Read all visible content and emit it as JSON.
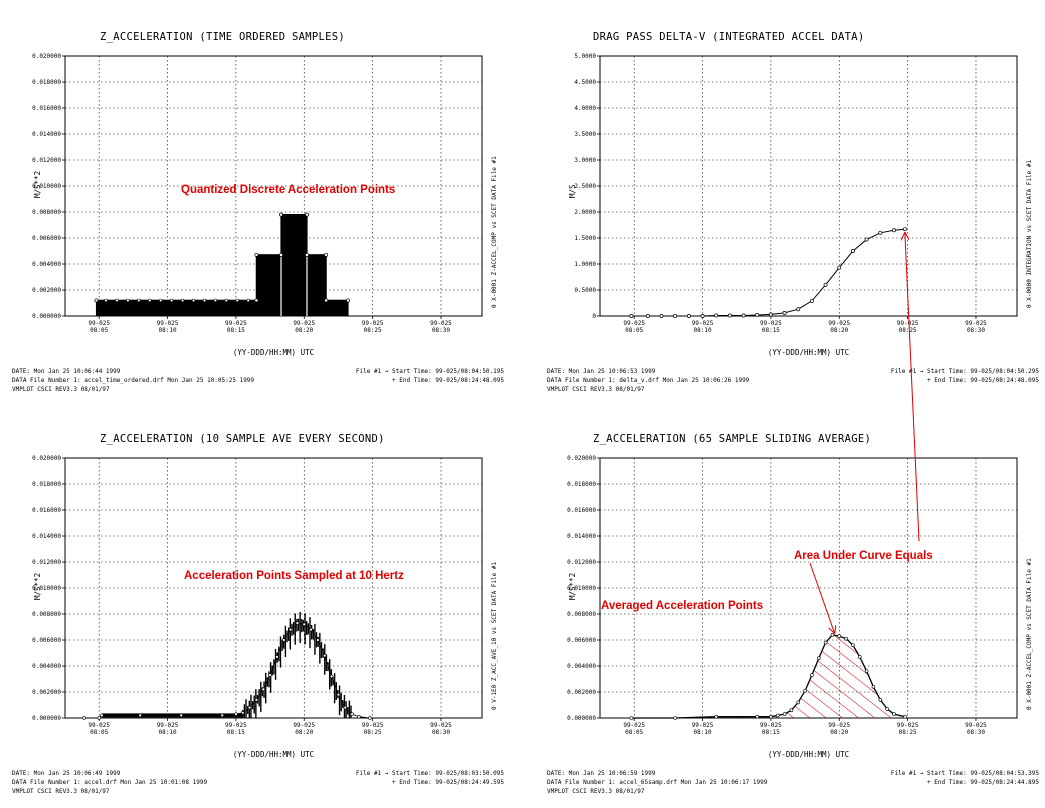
{
  "colors": {
    "annotation": "#e00000",
    "hatch": "#cc0000",
    "grid": "#000000"
  },
  "charts": [
    {
      "title": "Z_ACCELERATION (TIME ORDERED SAMPLES)",
      "ylabel": "M/S**2",
      "xlabel": "(YY-DDD/HH:MM) UTC",
      "right_label": "0 X-0001 Z-ACCEL_COMP vs SCET DATA File #1",
      "footer": {
        "date": "DATE: Mon Jan 25 10:06:44 1999",
        "file": "DATA File Number 1: accel_time_ordered.drf   Mon Jan 25 10:05:25 1999",
        "version": "VMPLOT CSCI REV3.3 08/01/97",
        "start": "File #1 → Start Time: 99-025/08:04:50.195",
        "end": "+ End Time: 99-025/08:24:48.095"
      },
      "annotations": [
        "Quantized Discrete Acceleration Points"
      ]
    },
    {
      "title": "DRAG PASS DELTA-V (INTEGRATED ACCEL DATA)",
      "ylabel": "M/S",
      "xlabel": "(YY-DDD/HH:MM) UTC",
      "right_label": "0 X-0000 INTEGRATION vs SCET DATA File #1",
      "footer": {
        "date": "DATE: Mon Jan 25 10:06:53 1999",
        "file": "DATA File Number 1: delta_v.drf   Mon Jan 25 10:06:26 1999",
        "version": "VMPLOT CSCI REV3.3 08/01/97",
        "start": "File #1 → Start Time: 99-025/08:04:50.295",
        "end": "+ End Time: 99-025/08:24:48.095"
      },
      "annotations": []
    },
    {
      "title": "Z_ACCELERATION (10 SAMPLE AVE EVERY SECOND)",
      "ylabel": "M/S**2",
      "xlabel": "(YY-DDD/HH:MM) UTC",
      "right_label": "0 V-1E0 Z_ACC_AVE_10 vs SCET DATA File #1",
      "footer": {
        "date": "DATE: Mon Jan 25 10:06:49 1999",
        "file": "DATA File Number 1: accel.drf   Mon Jan 25 10:01:08 1999",
        "version": "VMPLOT CSCI REV3.3 08/01/97",
        "start": "File #1 → Start Time: 99-025/08:03:50.095",
        "end": "+ End Time: 99-025/08:24:49.595"
      },
      "annotations": [
        "Acceleration Points Sampled at 10 Hertz"
      ]
    },
    {
      "title": "Z_ACCELERATION (65 SAMPLE SLIDING AVERAGE)",
      "ylabel": "M/S**2",
      "xlabel": "(YY-DDD/HH:MM) UTC",
      "right_label": "0 X-0001 Z-ACCEL_COMP vs SCET DATA File #1",
      "footer": {
        "date": "DATE: Mon Jan 25 10:06:59 1999",
        "file": "DATA File Number 1: accel_65samp.drf   Mon Jan 25 10:06:17 1999",
        "version": "VMPLOT CSCI REV3.3 08/01/97",
        "start": "File #1 → Start Time: 99-025/08:04:53.395",
        "end": "+ End Time: 99-025/08:24:44.895"
      },
      "annotations": [
        "Area Under Curve Equals",
        "Averaged Acceleration Points"
      ]
    }
  ],
  "chart_data": [
    {
      "type": "area",
      "x_unit": "minutes after 99-025/08:00",
      "xlim": [
        2.5,
        33
      ],
      "ylim": [
        0,
        0.02
      ],
      "y_ticks": [
        "0.000000",
        "0.002000",
        "0.004000",
        "0.006000",
        "0.008000",
        "0.010000",
        "0.012000",
        "0.014000",
        "0.016000",
        "0.018000",
        "0.020000"
      ],
      "x_ticks": [
        {
          "x": 5,
          "label": [
            "99-025",
            "08:05"
          ]
        },
        {
          "x": 10,
          "label": [
            "99-025",
            "08:10"
          ]
        },
        {
          "x": 15,
          "label": [
            "99-025",
            "08:15"
          ]
        },
        {
          "x": 20,
          "label": [
            "99-025",
            "08:20"
          ]
        },
        {
          "x": 25,
          "label": [
            "99-025",
            "08:25"
          ]
        },
        {
          "x": 30,
          "label": [
            "99-025",
            "08:30"
          ]
        }
      ],
      "grid": true,
      "series": [
        {
          "values": [
            [
              4.8,
              0.0012
            ],
            [
              16.5,
              0.0012
            ],
            [
              16.5,
              0.0047
            ],
            [
              18.3,
              0.0047
            ],
            [
              18.3,
              0.0078
            ],
            [
              20.2,
              0.0078
            ],
            [
              20.2,
              0.0047
            ],
            [
              21.6,
              0.0047
            ],
            [
              21.6,
              0.0012
            ],
            [
              23.2,
              0.0012
            ],
            [
              23.2,
              0.0
            ]
          ]
        }
      ]
    },
    {
      "type": "line",
      "x_unit": "minutes after 99-025/08:00",
      "xlim": [
        2.5,
        33
      ],
      "ylim": [
        0,
        5
      ],
      "y_ticks": [
        "0",
        "0.5000",
        "1.0000",
        "1.5000",
        "2.0000",
        "2.5000",
        "3.0000",
        "3.5000",
        "4.0000",
        "4.5000",
        "5.0000"
      ],
      "x_ticks": [
        {
          "x": 5,
          "label": [
            "99-025",
            "08:05"
          ]
        },
        {
          "x": 10,
          "label": [
            "99-025",
            "08:10"
          ]
        },
        {
          "x": 15,
          "label": [
            "99-025",
            "08:15"
          ]
        },
        {
          "x": 20,
          "label": [
            "99-025",
            "08:20"
          ]
        },
        {
          "x": 25,
          "label": [
            "99-025",
            "08:25"
          ]
        },
        {
          "x": 30,
          "label": [
            "99-025",
            "08:30"
          ]
        }
      ],
      "grid": true,
      "series": [
        {
          "values": [
            [
              4.8,
              0.0
            ],
            [
              6,
              0.0
            ],
            [
              7,
              0.0
            ],
            [
              8,
              0.0
            ],
            [
              9,
              0.0
            ],
            [
              10,
              0.0
            ],
            [
              11,
              0.01
            ],
            [
              12,
              0.01
            ],
            [
              13,
              0.01
            ],
            [
              14,
              0.02
            ],
            [
              15,
              0.03
            ],
            [
              16,
              0.06
            ],
            [
              17,
              0.13
            ],
            [
              18,
              0.29
            ],
            [
              19,
              0.6
            ],
            [
              20,
              0.93
            ],
            [
              21,
              1.25
            ],
            [
              22,
              1.47
            ],
            [
              23,
              1.6
            ],
            [
              24,
              1.65
            ],
            [
              24.8,
              1.67
            ]
          ]
        }
      ]
    },
    {
      "type": "line",
      "x_unit": "minutes after 99-025/08:00",
      "xlim": [
        2.5,
        33
      ],
      "ylim": [
        0,
        0.02
      ],
      "y_ticks": [
        "0.000000",
        "0.002000",
        "0.004000",
        "0.006000",
        "0.008000",
        "0.010000",
        "0.012000",
        "0.014000",
        "0.016000",
        "0.018000",
        "0.020000"
      ],
      "x_ticks": [
        {
          "x": 5,
          "label": [
            "99-025",
            "08:05"
          ]
        },
        {
          "x": 10,
          "label": [
            "99-025",
            "08:10"
          ]
        },
        {
          "x": 15,
          "label": [
            "99-025",
            "08:15"
          ]
        },
        {
          "x": 20,
          "label": [
            "99-025",
            "08:20"
          ]
        },
        {
          "x": 25,
          "label": [
            "99-025",
            "08:25"
          ]
        },
        {
          "x": 30,
          "label": [
            "99-025",
            "08:30"
          ]
        }
      ],
      "grid": true,
      "series": [
        {
          "values": [
            [
              3.9,
              0.0
            ],
            [
              5,
              0.0
            ],
            [
              5.2,
              0.0002
            ],
            [
              8,
              0.0002
            ],
            [
              11,
              0.0002
            ],
            [
              14,
              0.0002
            ],
            [
              15,
              0.0003
            ],
            [
              15.5,
              0.0004
            ],
            [
              16,
              0.0008
            ],
            [
              16.5,
              0.0014
            ],
            [
              17,
              0.0022
            ],
            [
              17.5,
              0.0033
            ],
            [
              18,
              0.0047
            ],
            [
              18.5,
              0.006
            ],
            [
              19,
              0.0068
            ],
            [
              19.5,
              0.0073
            ],
            [
              20,
              0.0072
            ],
            [
              20.5,
              0.0068
            ],
            [
              21,
              0.006
            ],
            [
              21.5,
              0.0048
            ],
            [
              22,
              0.0032
            ],
            [
              22.5,
              0.0018
            ],
            [
              23,
              0.0008
            ],
            [
              23.5,
              0.0003
            ],
            [
              24,
              0.0001
            ],
            [
              24.8,
              0.0
            ]
          ]
        }
      ]
    },
    {
      "type": "area",
      "x_unit": "minutes after 99-025/08:00",
      "xlim": [
        2.5,
        33
      ],
      "ylim": [
        0,
        0.02
      ],
      "y_ticks": [
        "0.000000",
        "0.002000",
        "0.004000",
        "0.006000",
        "0.008000",
        "0.010000",
        "0.012000",
        "0.014000",
        "0.016000",
        "0.018000",
        "0.020000"
      ],
      "x_ticks": [
        {
          "x": 5,
          "label": [
            "99-025",
            "08:05"
          ]
        },
        {
          "x": 10,
          "label": [
            "99-025",
            "08:10"
          ]
        },
        {
          "x": 15,
          "label": [
            "99-025",
            "08:15"
          ]
        },
        {
          "x": 20,
          "label": [
            "99-025",
            "08:20"
          ]
        },
        {
          "x": 25,
          "label": [
            "99-025",
            "08:25"
          ]
        },
        {
          "x": 30,
          "label": [
            "99-025",
            "08:30"
          ]
        }
      ],
      "grid": true,
      "series": [
        {
          "values": [
            [
              4.8,
              0.0
            ],
            [
              8,
              0.0
            ],
            [
              11,
              0.0001
            ],
            [
              14,
              0.0001
            ],
            [
              15,
              0.0001
            ],
            [
              15.5,
              0.0002
            ],
            [
              16,
              0.0003
            ],
            [
              16.5,
              0.0006
            ],
            [
              17,
              0.0012
            ],
            [
              17.5,
              0.0021
            ],
            [
              18,
              0.0033
            ],
            [
              18.5,
              0.0046
            ],
            [
              19,
              0.0058
            ],
            [
              19.5,
              0.0064
            ],
            [
              20,
              0.0063
            ],
            [
              20.5,
              0.0061
            ],
            [
              21,
              0.0056
            ],
            [
              21.5,
              0.0047
            ],
            [
              22,
              0.0036
            ],
            [
              22.5,
              0.0024
            ],
            [
              23,
              0.0014
            ],
            [
              23.5,
              0.0007
            ],
            [
              24,
              0.0003
            ],
            [
              24.8,
              0.0001
            ]
          ]
        }
      ]
    }
  ]
}
